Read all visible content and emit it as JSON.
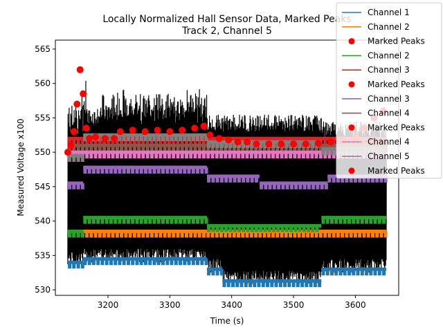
{
  "chart_data": {
    "type": "line",
    "title": [
      "Locally Normalized Hall Sensor Data, Marked Peaks",
      "Track 2, Channel 5"
    ],
    "xlabel": "Time (s)",
    "ylabel": "Measured Voltage x100",
    "xlim": [
      3115,
      3670
    ],
    "ylim": [
      529.2,
      566.3
    ],
    "xticks": [
      3200,
      3300,
      3400,
      3500,
      3600
    ],
    "yticks": [
      530,
      535,
      540,
      545,
      550,
      555,
      560,
      565
    ],
    "time_range": [
      3135,
      3650
    ],
    "grid": false,
    "legend_position": "top-right",
    "series": [
      {
        "name": "Channel 1",
        "kind": "line",
        "color": "#1f77b4",
        "segments": [
          [
            3135,
            3160,
            534.0
          ],
          [
            3160,
            3360,
            534.5
          ],
          [
            3360,
            3385,
            533.0
          ],
          [
            3385,
            3545,
            531.3
          ],
          [
            3545,
            3650,
            533.0
          ]
        ]
      },
      {
        "name": "Channel 2",
        "kind": "line",
        "color": "#ff7f0e",
        "segments": [
          [
            3135,
            3650,
            538.5
          ]
        ]
      },
      {
        "name": "Marked Peaks",
        "kind": "peaks",
        "color": "#ff0000",
        "values": []
      },
      {
        "name": "Channel 2",
        "kind": "line",
        "color": "#2ca02c",
        "segments": [
          [
            3135,
            3160,
            538.5
          ],
          [
            3160,
            3360,
            540.5
          ],
          [
            3360,
            3545,
            539.3
          ],
          [
            3545,
            3650,
            540.5
          ]
        ]
      },
      {
        "name": "Channel 3",
        "kind": "line",
        "color": "#d62728",
        "segments": [
          [
            3135,
            3650,
            552.0
          ]
        ]
      },
      {
        "name": "Marked Peaks",
        "kind": "peaks",
        "color": "#ff0000",
        "values": []
      },
      {
        "name": "Channel 3",
        "kind": "line",
        "color": "#9467bd",
        "segments": [
          [
            3135,
            3160,
            545.5
          ],
          [
            3160,
            3360,
            547.8
          ],
          [
            3360,
            3445,
            546.5
          ],
          [
            3445,
            3555,
            545.5
          ],
          [
            3555,
            3650,
            546.5
          ]
        ]
      },
      {
        "name": "Channel 4",
        "kind": "line",
        "color": "#8c564b",
        "segments": [
          [
            3135,
            3650,
            551.0
          ]
        ]
      },
      {
        "name": "Marked Peaks",
        "kind": "peaks",
        "color": "#ff0000",
        "values": [
          [
            3135,
            550.0
          ],
          [
            3140,
            551.0
          ],
          [
            3145,
            553.0
          ],
          [
            3150,
            557.0
          ],
          [
            3155,
            562.0
          ],
          [
            3160,
            558.5
          ],
          [
            3165,
            553.5
          ],
          [
            3170,
            552.0
          ],
          [
            3180,
            552.2
          ],
          [
            3195,
            552.0
          ],
          [
            3210,
            552.0
          ],
          [
            3220,
            553.0
          ],
          [
            3240,
            553.2
          ],
          [
            3260,
            553.0
          ],
          [
            3280,
            553.2
          ],
          [
            3300,
            553.0
          ],
          [
            3320,
            553.2
          ],
          [
            3340,
            553.5
          ],
          [
            3355,
            553.8
          ],
          [
            3365,
            552.5
          ],
          [
            3380,
            552.0
          ],
          [
            3395,
            551.8
          ],
          [
            3410,
            551.5
          ],
          [
            3425,
            551.5
          ],
          [
            3440,
            551.2
          ],
          [
            3460,
            551.2
          ],
          [
            3480,
            551.2
          ],
          [
            3500,
            551.2
          ],
          [
            3520,
            551.2
          ],
          [
            3540,
            551.3
          ],
          [
            3560,
            551.5
          ],
          [
            3580,
            551.8
          ],
          [
            3600,
            552.3
          ],
          [
            3615,
            553.5
          ],
          [
            3630,
            555.0
          ],
          [
            3645,
            556.0
          ]
        ]
      },
      {
        "name": "Channel 4",
        "kind": "line",
        "color": "#e377c2",
        "segments": [
          [
            3135,
            3650,
            550.0
          ]
        ]
      },
      {
        "name": "Channel 5",
        "kind": "line",
        "color": "#7f7f7f",
        "segments": [
          [
            3135,
            3160,
            549.5
          ],
          [
            3160,
            3360,
            552.5
          ],
          [
            3360,
            3545,
            551.5
          ],
          [
            3545,
            3650,
            550.5
          ]
        ]
      },
      {
        "name": "Marked Peaks",
        "kind": "peaks",
        "color": "#ff0000",
        "values": []
      }
    ]
  }
}
